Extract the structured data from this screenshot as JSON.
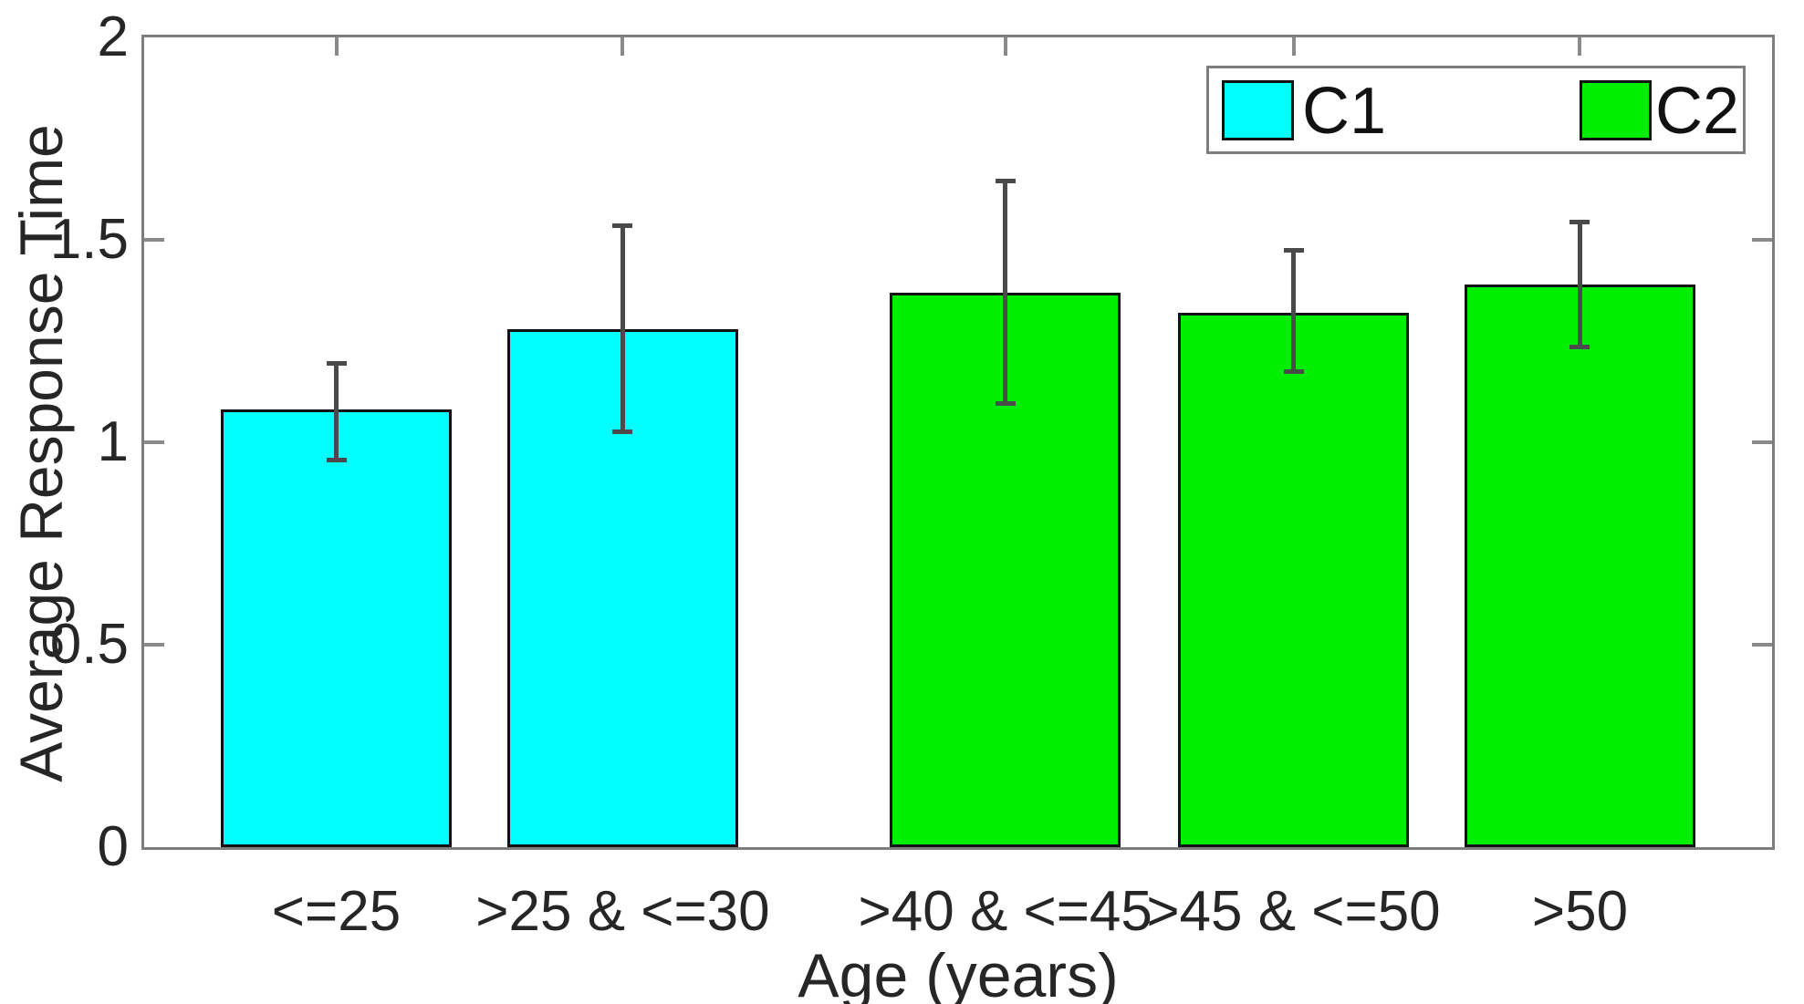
{
  "figure": {
    "background": "#ffffff"
  },
  "chart_data": {
    "type": "bar",
    "title": "",
    "xlabel": "Age (years)",
    "ylabel": "Average Response Time",
    "ylim": [
      0,
      2
    ],
    "yticks": [
      {
        "value": 0,
        "label": "0"
      },
      {
        "value": 0.5,
        "label": "0.5"
      },
      {
        "value": 1,
        "label": "1"
      },
      {
        "value": 1.5,
        "label": "1.5"
      },
      {
        "value": 2,
        "label": "2"
      }
    ],
    "categories": [
      "<=25",
      ">25 & <=30",
      ">40 & <=45",
      ">45 & <=50",
      ">50"
    ],
    "series": [
      {
        "name": "C1",
        "color": "#00ffff",
        "categories": [
          "<=25",
          ">25 & <=30"
        ]
      },
      {
        "name": "C2",
        "color": "#00ee00",
        "categories": [
          ">40 & <=45",
          ">45 & <=50",
          ">50"
        ]
      }
    ],
    "bars": [
      {
        "category": "<=25",
        "series": "C1",
        "value": 1.08,
        "err_low": 0.95,
        "err_high": 1.2
      },
      {
        "category": ">25 & <=30",
        "series": "C1",
        "value": 1.28,
        "err_low": 1.02,
        "err_high": 1.54
      },
      {
        "category": ">40 & <=45",
        "series": "C2",
        "value": 1.37,
        "err_low": 1.09,
        "err_high": 1.65
      },
      {
        "category": ">45 & <=50",
        "series": "C2",
        "value": 1.32,
        "err_low": 1.17,
        "err_high": 1.48
      },
      {
        "category": ">50",
        "series": "C2",
        "value": 1.39,
        "err_low": 1.23,
        "err_high": 1.55
      }
    ],
    "legend": {
      "position": "top-right",
      "entries": [
        "C1",
        "C2"
      ]
    },
    "grid": false,
    "layout": {
      "bar_center_fracs": [
        0.118,
        0.294,
        0.529,
        0.706,
        0.882
      ],
      "bar_width_frac": 0.142,
      "axis_color": "#7e7e7e",
      "tick_color": "#8a8a8a",
      "error_bar_color": "#4a4a4a",
      "bar_edge_color": "#111111",
      "text_color": "#262626"
    }
  }
}
